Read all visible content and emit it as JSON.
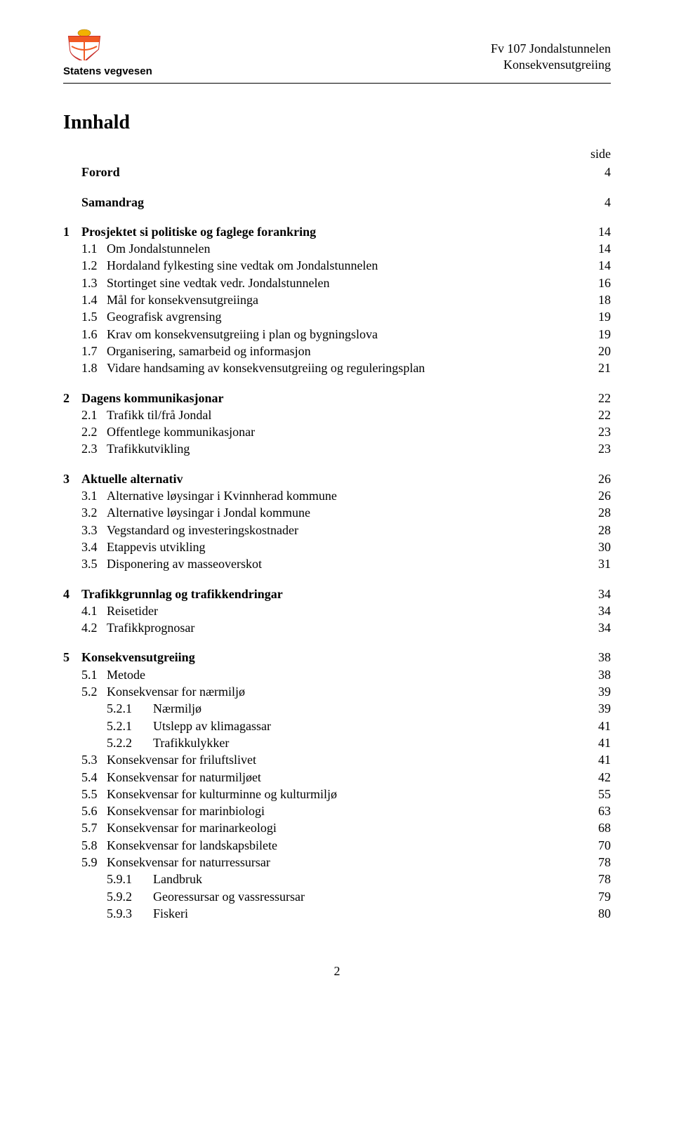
{
  "header": {
    "brand": "Statens vegvesen",
    "right_line1": "Fv 107 Jondalstunnelen",
    "right_line2": "Konsekvensutgreiing"
  },
  "title": "Innhald",
  "side_label": "side",
  "footer_page_number": "2",
  "toc": [
    {
      "level": 0,
      "num": "",
      "label": "Forord",
      "page": "4",
      "bold": true
    },
    {
      "gap": true
    },
    {
      "level": 0,
      "num": "",
      "label": "Samandrag",
      "page": "4",
      "bold": true
    },
    {
      "gap": true
    },
    {
      "level": 0,
      "num": "1",
      "label": "Prosjektet si politiske og faglege forankring",
      "page": "14",
      "bold": true
    },
    {
      "level": 1,
      "num": "1.1",
      "label": "Om Jondalstunnelen",
      "page": "14"
    },
    {
      "level": 1,
      "num": "1.2",
      "label": "Hordaland fylkesting sine vedtak om Jondalstunnelen",
      "page": "14"
    },
    {
      "level": 1,
      "num": "1.3",
      "label": "Stortinget sine vedtak vedr. Jondalstunnelen",
      "page": "16"
    },
    {
      "level": 1,
      "num": "1.4",
      "label": "Mål for konsekvensutgreiinga",
      "page": "18"
    },
    {
      "level": 1,
      "num": "1.5",
      "label": "Geografisk avgrensing",
      "page": "19"
    },
    {
      "level": 1,
      "num": "1.6",
      "label": "Krav om konsekvensutgreiing i plan og bygningslova",
      "page": "19"
    },
    {
      "level": 1,
      "num": "1.7",
      "label": "Organisering, samarbeid og informasjon",
      "page": "20"
    },
    {
      "level": 1,
      "num": "1.8",
      "label": "Vidare handsaming av konsekvensutgreiing og reguleringsplan",
      "page": "21"
    },
    {
      "gap": true
    },
    {
      "level": 0,
      "num": "2",
      "label": "Dagens kommunikasjonar",
      "page": "22",
      "bold": true
    },
    {
      "level": 1,
      "num": "2.1",
      "label": "Trafikk til/frå Jondal",
      "page": "22"
    },
    {
      "level": 1,
      "num": "2.2",
      "label": "Offentlege kommunikasjonar",
      "page": "23"
    },
    {
      "level": 1,
      "num": "2.3",
      "label": "Trafikkutvikling",
      "page": "23"
    },
    {
      "gap": true
    },
    {
      "level": 0,
      "num": "3",
      "label": "Aktuelle alternativ",
      "page": "26",
      "bold": true
    },
    {
      "level": 1,
      "num": "3.1",
      "label": "Alternative løysingar i Kvinnherad kommune",
      "page": "26"
    },
    {
      "level": 1,
      "num": "3.2",
      "label": "Alternative løysingar i Jondal kommune",
      "page": "28"
    },
    {
      "level": 1,
      "num": "3.3",
      "label": "Vegstandard og investeringskostnader",
      "page": "28"
    },
    {
      "level": 1,
      "num": "3.4",
      "label": "Etappevis utvikling",
      "page": "30"
    },
    {
      "level": 1,
      "num": "3.5",
      "label": "Disponering av masseoverskot",
      "page": "31"
    },
    {
      "gap": true
    },
    {
      "level": 0,
      "num": "4",
      "label": "Trafikkgrunnlag og trafikkendringar",
      "page": "34",
      "bold": true
    },
    {
      "level": 1,
      "num": "4.1",
      "label": "Reisetider",
      "page": "34"
    },
    {
      "level": 1,
      "num": "4.2",
      "label": "Trafikkprognosar",
      "page": "34"
    },
    {
      "gap": true
    },
    {
      "level": 0,
      "num": "5",
      "label": "Konsekvensutgreiing",
      "page": "38",
      "bold": true
    },
    {
      "level": 1,
      "num": "5.1",
      "label": "Metode",
      "page": "38"
    },
    {
      "level": 1,
      "num": "5.2",
      "label": "Konsekvensar for nærmiljø",
      "page": "39"
    },
    {
      "level": 2,
      "num": "5.2.1",
      "label": "Nærmiljø",
      "page": "39"
    },
    {
      "level": 2,
      "num": "5.2.1",
      "label": "Utslepp av klimagassar",
      "page": "41"
    },
    {
      "level": 2,
      "num": "5.2.2",
      "label": "Trafikkulykker",
      "page": "41"
    },
    {
      "level": 1,
      "num": "5.3",
      "label": "Konsekvensar for friluftslivet",
      "page": "41"
    },
    {
      "level": 1,
      "num": "5.4",
      "label": "Konsekvensar for naturmiljøet",
      "page": "42"
    },
    {
      "level": 1,
      "num": "5.5",
      "label": "Konsekvensar for kulturminne og kulturmiljø",
      "page": "55"
    },
    {
      "level": 1,
      "num": "5.6",
      "label": "Konsekvensar for marinbiologi",
      "page": "63"
    },
    {
      "level": 1,
      "num": "5.7",
      "label": "Konsekvensar for marinarkeologi",
      "page": "68"
    },
    {
      "level": 1,
      "num": "5.8",
      "label": "Konsekvensar for landskapsbilete",
      "page": "70"
    },
    {
      "level": 1,
      "num": "5.9",
      "label": "Konsekvensar for naturressursar",
      "page": "78"
    },
    {
      "level": 2,
      "num": "5.9.1",
      "label": "Landbruk",
      "page": "78"
    },
    {
      "level": 2,
      "num": "5.9.2",
      "label": "Georessursar og vassressursar",
      "page": "79"
    },
    {
      "level": 2,
      "num": "5.9.3",
      "label": "Fiskeri",
      "page": "80"
    }
  ]
}
